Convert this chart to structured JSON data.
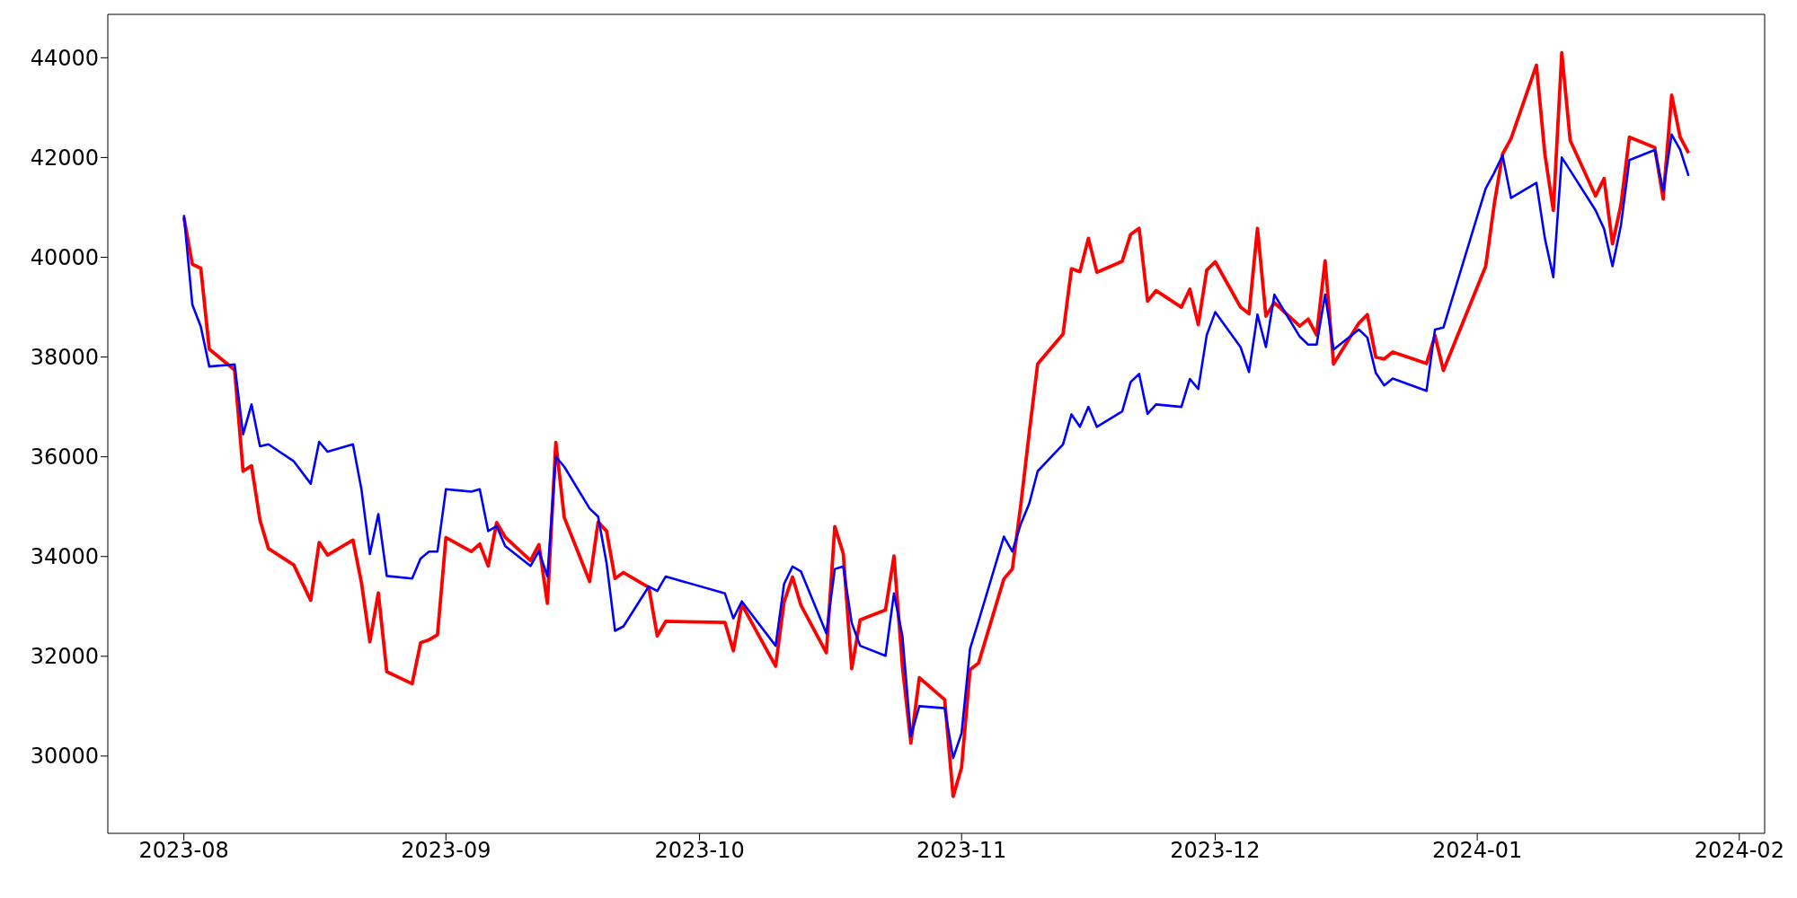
{
  "chart_data": {
    "type": "line",
    "x": [
      "2023-08-01",
      "2023-08-02",
      "2023-08-03",
      "2023-08-04",
      "2023-08-07",
      "2023-08-08",
      "2023-08-09",
      "2023-08-10",
      "2023-08-11",
      "2023-08-14",
      "2023-08-16",
      "2023-08-17",
      "2023-08-18",
      "2023-08-21",
      "2023-08-22",
      "2023-08-23",
      "2023-08-24",
      "2023-08-25",
      "2023-08-28",
      "2023-08-29",
      "2023-08-30",
      "2023-08-31",
      "2023-09-01",
      "2023-09-04",
      "2023-09-05",
      "2023-09-06",
      "2023-09-07",
      "2023-09-08",
      "2023-09-11",
      "2023-09-12",
      "2023-09-13",
      "2023-09-14",
      "2023-09-15",
      "2023-09-18",
      "2023-09-19",
      "2023-09-20",
      "2023-09-21",
      "2023-09-22",
      "2023-09-25",
      "2023-09-26",
      "2023-09-27",
      "2023-10-04",
      "2023-10-05",
      "2023-10-06",
      "2023-10-10",
      "2023-10-11",
      "2023-10-12",
      "2023-10-13",
      "2023-10-16",
      "2023-10-17",
      "2023-10-18",
      "2023-10-19",
      "2023-10-20",
      "2023-10-23",
      "2023-10-24",
      "2023-10-25",
      "2023-10-26",
      "2023-10-27",
      "2023-10-30",
      "2023-10-31",
      "2023-11-01",
      "2023-11-02",
      "2023-11-03",
      "2023-11-06",
      "2023-11-07",
      "2023-11-08",
      "2023-11-09",
      "2023-11-10",
      "2023-11-13",
      "2023-11-14",
      "2023-11-15",
      "2023-11-16",
      "2023-11-17",
      "2023-11-20",
      "2023-11-21",
      "2023-11-22",
      "2023-11-23",
      "2023-11-24",
      "2023-11-27",
      "2023-11-28",
      "2023-11-29",
      "2023-11-30",
      "2023-12-01",
      "2023-12-04",
      "2023-12-05",
      "2023-12-06",
      "2023-12-07",
      "2023-12-08",
      "2023-12-11",
      "2023-12-12",
      "2023-12-13",
      "2023-12-14",
      "2023-12-15",
      "2023-12-18",
      "2023-12-19",
      "2023-12-20",
      "2023-12-21",
      "2023-12-22",
      "2023-12-26",
      "2023-12-27",
      "2023-12-28",
      "2024-01-02",
      "2024-01-03",
      "2024-01-04",
      "2024-01-05",
      "2024-01-08",
      "2024-01-09",
      "2024-01-10",
      "2024-01-11",
      "2024-01-12",
      "2024-01-15",
      "2024-01-16",
      "2024-01-17",
      "2024-01-18",
      "2024-01-19",
      "2024-01-22",
      "2024-01-23",
      "2024-01-24",
      "2024-01-25",
      "2024-01-26"
    ],
    "series": [
      {
        "color": "#ff0000",
        "values": [
          40800,
          39860,
          39780,
          38160,
          37740,
          35710,
          35820,
          34730,
          34160,
          33830,
          33120,
          34280,
          34030,
          34330,
          33480,
          32290,
          33270,
          31690,
          31450,
          32270,
          32330,
          32430,
          34380,
          34100,
          34250,
          33810,
          34680,
          34390,
          33920,
          34240,
          33060,
          36290,
          34780,
          33500,
          34690,
          34510,
          33560,
          33680,
          33380,
          32410,
          32700,
          32680,
          32110,
          33040,
          31800,
          33090,
          33590,
          33020,
          32070,
          34600,
          34060,
          31750,
          32730,
          32930,
          34010,
          31800,
          30260,
          31570,
          31130,
          29190,
          29770,
          31730,
          31860,
          33550,
          33750,
          35030,
          36480,
          37860,
          38460,
          39770,
          39710,
          40380,
          39700,
          39920,
          40460,
          40580,
          39120,
          39330,
          39000,
          39360,
          38650,
          39740,
          39910,
          39000,
          38870,
          40580,
          38820,
          39090,
          38620,
          38760,
          38440,
          39930,
          37860,
          38680,
          38850,
          38000,
          37960,
          38100,
          37870,
          38430,
          37730,
          39820,
          41050,
          42070,
          42380,
          43850,
          42070,
          40940,
          44100,
          42340,
          41230,
          41580,
          40270,
          41050,
          42410,
          42200,
          41170,
          43250,
          42410,
          42090
        ]
      },
      {
        "color": "#0000ff",
        "values": [
          40850,
          39050,
          38610,
          37810,
          37850,
          36450,
          37050,
          36210,
          36250,
          35910,
          35460,
          36300,
          36100,
          36250,
          35350,
          34050,
          34850,
          33610,
          33560,
          33960,
          34100,
          34100,
          35350,
          35300,
          35350,
          34510,
          34610,
          34210,
          33810,
          34110,
          33600,
          36000,
          35800,
          34960,
          34800,
          33870,
          32510,
          32600,
          33400,
          33310,
          33600,
          33260,
          32760,
          33100,
          32210,
          33450,
          33800,
          33700,
          32460,
          33750,
          33800,
          32670,
          32210,
          32010,
          33260,
          32400,
          30400,
          31000,
          30960,
          29960,
          30460,
          32150,
          32700,
          34400,
          34100,
          34650,
          35060,
          35710,
          36250,
          36850,
          36600,
          37000,
          36600,
          36910,
          37500,
          37660,
          36860,
          37050,
          37000,
          37560,
          37360,
          38440,
          38900,
          38200,
          37700,
          38850,
          38200,
          39250,
          38410,
          38250,
          38250,
          39250,
          38150,
          38550,
          38390,
          37680,
          37430,
          37570,
          37320,
          38550,
          38590,
          41380,
          41690,
          42040,
          41190,
          41490,
          40380,
          39600,
          42000,
          41740,
          40940,
          40570,
          39820,
          40640,
          41950,
          42150,
          41330,
          42460,
          42160,
          41630
        ]
      }
    ],
    "xlim": [
      "2023-07-23",
      "2024-02-04"
    ],
    "xticks": [
      "2023-08",
      "2023-09",
      "2023-10",
      "2023-11",
      "2023-12",
      "2024-01",
      "2024-02"
    ],
    "ylim": [
      28450,
      44870
    ],
    "yticks": [
      30000,
      32000,
      34000,
      36000,
      38000,
      40000,
      42000,
      44000
    ],
    "grid": false,
    "legend": false,
    "marker": "none",
    "line_style": "solid"
  }
}
